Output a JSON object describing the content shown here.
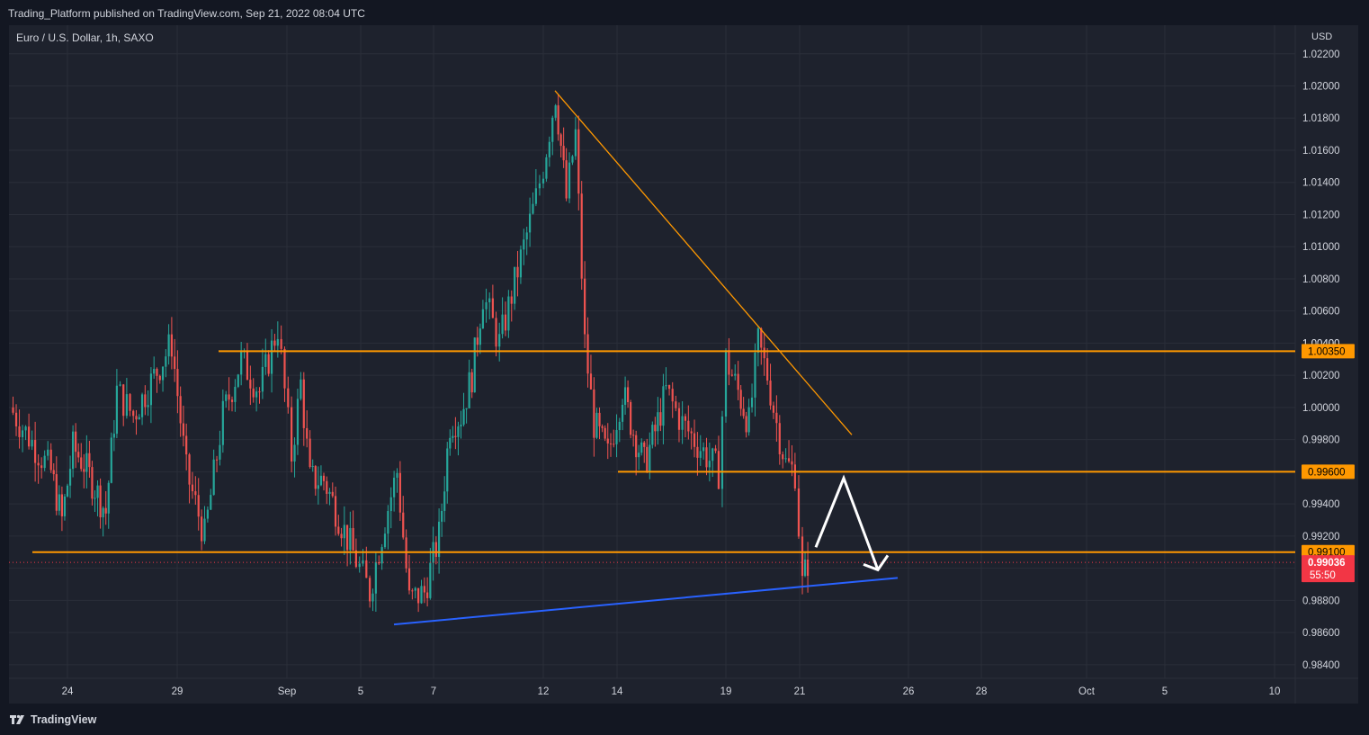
{
  "header": {
    "published_line": "Trading_Platform published on TradingView.com, Sep 21, 2022 08:04 UTC"
  },
  "symbol": {
    "title": "Euro / U.S. Dollar, 1h, SAXO",
    "currency": "USD"
  },
  "footer": {
    "brand": "TradingView",
    "logo_icon": "tradingview-logo-icon"
  },
  "colors": {
    "background": "#1e222d",
    "grid": "#2a2e39",
    "up_candle": "#26a69a",
    "down_candle": "#ef5350",
    "level_line": "#ff9800",
    "trend_line_support": "#2962ff",
    "arrow": "#ffffff",
    "last_price": "#f23645"
  },
  "chart_data": {
    "type": "candlestick",
    "symbol": "Euro / U.S. Dollar",
    "interval": "1h",
    "exchange": "SAXO",
    "y_unit": "USD",
    "ylim": [
      0.983,
      1.0234
    ],
    "x_axis_ticks": [
      "24",
      "29",
      "Sep",
      "5",
      "7",
      "12",
      "14",
      "19",
      "21",
      "26",
      "28",
      "Oct",
      "5",
      "10"
    ],
    "y_axis_ticks": [
      "1.02200",
      "1.02000",
      "1.01800",
      "1.01600",
      "1.01400",
      "1.01200",
      "1.01000",
      "1.00800",
      "1.00600",
      "1.00400",
      "1.00200",
      "1.00000",
      "0.99800",
      "0.99600",
      "0.99400",
      "0.99200",
      "0.99000",
      "0.98800",
      "0.98600",
      "0.98400"
    ],
    "price_path": [
      {
        "date": "Aug 23",
        "price": 1.0
      },
      {
        "date": "Aug 23",
        "price": 0.996
      },
      {
        "date": "Aug 24",
        "price": 0.993
      },
      {
        "date": "Aug 24",
        "price": 0.9975
      },
      {
        "date": "Aug 25",
        "price": 0.9965
      },
      {
        "date": "Aug 25",
        "price": 0.995
      },
      {
        "date": "Aug 26",
        "price": 0.9935
      },
      {
        "date": "Aug 26",
        "price": 1.001
      },
      {
        "date": "Aug 27",
        "price": 0.9995
      },
      {
        "date": "Aug 29",
        "price": 1.004
      },
      {
        "date": "Aug 29",
        "price": 0.996
      },
      {
        "date": "Aug 30",
        "price": 0.992
      },
      {
        "date": "Aug 30",
        "price": 0.9995
      },
      {
        "date": "Aug 31",
        "price": 1.003
      },
      {
        "date": "Aug 31",
        "price": 1.001
      },
      {
        "date": "Sep 1",
        "price": 1.005
      },
      {
        "date": "Sep 1",
        "price": 0.997
      },
      {
        "date": "Sep 2",
        "price": 1.0015
      },
      {
        "date": "Sep 2",
        "price": 0.9955
      },
      {
        "date": "Sep 3",
        "price": 0.9955
      },
      {
        "date": "Sep 5",
        "price": 0.9905
      },
      {
        "date": "Sep 5",
        "price": 0.9885
      },
      {
        "date": "Sep 6",
        "price": 0.993
      },
      {
        "date": "Sep 6",
        "price": 0.996
      },
      {
        "date": "Sep 6",
        "price": 0.988
      },
      {
        "date": "Sep 7",
        "price": 0.9885
      },
      {
        "date": "Sep 7",
        "price": 0.992
      },
      {
        "date": "Sep 8",
        "price": 0.999
      },
      {
        "date": "Sep 8",
        "price": 0.9995
      },
      {
        "date": "Sep 9",
        "price": 1.002
      },
      {
        "date": "Sep 9",
        "price": 1.007
      },
      {
        "date": "Sep 10",
        "price": 1.004
      },
      {
        "date": "Sep 12",
        "price": 1.013
      },
      {
        "date": "Sep 12",
        "price": 1.015
      },
      {
        "date": "Sep 12",
        "price": 1.0195
      },
      {
        "date": "Sep 13",
        "price": 1.013
      },
      {
        "date": "Sep 13",
        "price": 1.017
      },
      {
        "date": "Sep 13",
        "price": 1.004
      },
      {
        "date": "Sep 13",
        "price": 0.999
      },
      {
        "date": "Sep 14",
        "price": 0.997
      },
      {
        "date": "Sep 14",
        "price": 1.001
      },
      {
        "date": "Sep 15",
        "price": 0.9985
      },
      {
        "date": "Sep 15",
        "price": 0.9965
      },
      {
        "date": "Sep 16",
        "price": 0.9985
      },
      {
        "date": "Sep 16",
        "price": 1.001
      },
      {
        "date": "Sep 17",
        "price": 0.999
      },
      {
        "date": "Sep 19",
        "price": 0.996
      },
      {
        "date": "Sep 19",
        "price": 1.003
      },
      {
        "date": "Sep 19",
        "price": 1.001
      },
      {
        "date": "Sep 20",
        "price": 0.999
      },
      {
        "date": "Sep 20",
        "price": 1.004
      },
      {
        "date": "Sep 20",
        "price": 1.002
      },
      {
        "date": "Sep 20",
        "price": 0.999
      },
      {
        "date": "Sep 21",
        "price": 0.9965
      },
      {
        "date": "Sep 21",
        "price": 0.996
      },
      {
        "date": "Sep 21",
        "price": 0.989
      },
      {
        "date": "Sep 21",
        "price": 0.9904
      }
    ],
    "horizontal_levels": [
      {
        "price": 1.0035,
        "label": "1.00350"
      },
      {
        "price": 0.996,
        "label": "0.99600"
      },
      {
        "price": 0.991,
        "label": "0.99100"
      }
    ],
    "last_price": {
      "value": 0.99036,
      "label": "0.99036",
      "countdown": "55:50"
    },
    "hidden_tick_label": "1.00400",
    "trend_lines": [
      {
        "name": "descending resistance",
        "from": {
          "date": "Sep 12",
          "price": 1.0197
        },
        "to": {
          "date": "Sep 22",
          "price": 0.9983
        }
      },
      {
        "name": "ascending support",
        "from": {
          "date": "Sep 6",
          "price": 0.9865
        },
        "to": {
          "date": "Sep 25",
          "price": 0.9894
        }
      }
    ],
    "projection_arrow": {
      "path": [
        {
          "date": "Sep 21",
          "price": 0.9913
        },
        {
          "date": "Sep 22",
          "price": 0.9956
        },
        {
          "date": "Sep 24",
          "price": 0.9899
        }
      ]
    },
    "grid": true
  }
}
